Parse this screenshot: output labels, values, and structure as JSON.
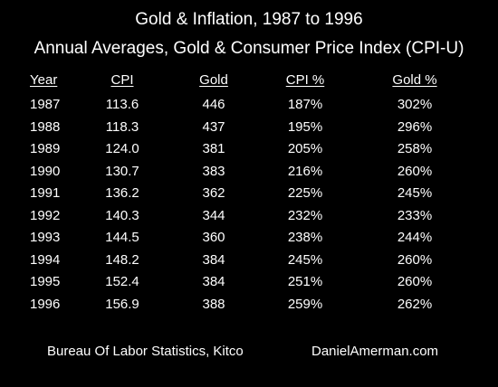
{
  "chart_data": {
    "type": "table",
    "title": "Gold & Inflation, 1987 to 1996",
    "subtitle": "Annual Averages, Gold & Consumer Price Index (CPI-U)",
    "columns": [
      "Year",
      "CPI",
      "Gold",
      "CPI %",
      "Gold %"
    ],
    "rows": [
      [
        "1987",
        "113.6",
        "446",
        "187%",
        "302%"
      ],
      [
        "1988",
        "118.3",
        "437",
        "195%",
        "296%"
      ],
      [
        "1989",
        "124.0",
        "381",
        "205%",
        "258%"
      ],
      [
        "1990",
        "130.7",
        "383",
        "216%",
        "260%"
      ],
      [
        "1991",
        "136.2",
        "362",
        "225%",
        "245%"
      ],
      [
        "1992",
        "140.3",
        "344",
        "232%",
        "233%"
      ],
      [
        "1993",
        "144.5",
        "360",
        "238%",
        "244%"
      ],
      [
        "1994",
        "148.2",
        "384",
        "245%",
        "260%"
      ],
      [
        "1995",
        "152.4",
        "384",
        "251%",
        "260%"
      ],
      [
        "1996",
        "156.9",
        "388",
        "259%",
        "262%"
      ]
    ]
  },
  "footer": {
    "source": "Bureau Of Labor Statistics, Kitco",
    "site": "DanielAmerman.com"
  },
  "colors": {
    "background": "#000000",
    "text": "#ffffff"
  }
}
